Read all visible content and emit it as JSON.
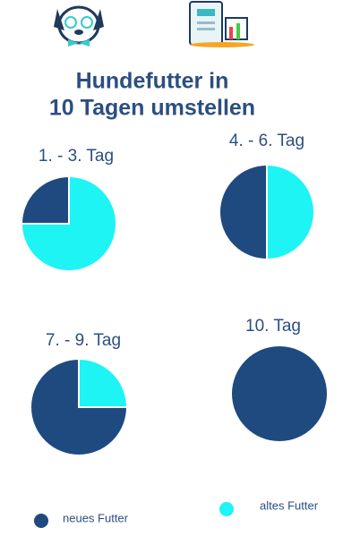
{
  "title": [
    "Hundefutter in",
    "10 Tagen umstellen"
  ],
  "chart_data": [
    {
      "type": "pie",
      "title": "1. - 3. Tag",
      "categories": [
        "neues Futter",
        "altes Futter"
      ],
      "values": [
        25,
        75
      ],
      "colors": [
        "#1f4a80",
        "#1ef4f4"
      ]
    },
    {
      "type": "pie",
      "title": "4. - 6. Tag",
      "categories": [
        "neues Futter",
        "altes Futter"
      ],
      "values": [
        50,
        50
      ],
      "colors": [
        "#1f4a80",
        "#1ef4f4"
      ]
    },
    {
      "type": "pie",
      "title": "7. - 9. Tag",
      "categories": [
        "neues Futter",
        "altes Futter"
      ],
      "values": [
        75,
        25
      ],
      "colors": [
        "#1f4a80",
        "#1ef4f4"
      ]
    },
    {
      "type": "pie",
      "title": "10. Tag",
      "categories": [
        "neues Futter",
        "altes Futter"
      ],
      "values": [
        100,
        0
      ],
      "colors": [
        "#1f4a80",
        "#1ef4f4"
      ]
    }
  ]
}
